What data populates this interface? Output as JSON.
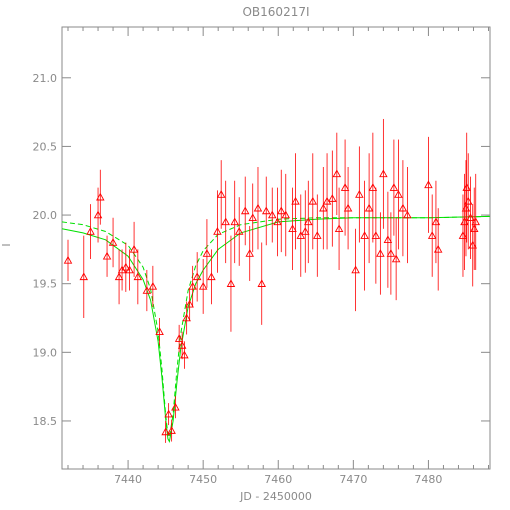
{
  "chart_data": {
    "type": "scatter",
    "title": "OB160217I",
    "xlabel": "JD - 2450000",
    "ylabel": "I",
    "xlim": [
      7431.2,
      7488.2
    ],
    "ylim": [
      21.37,
      18.15
    ],
    "y_inverted": true,
    "grid": false,
    "legend": "none",
    "xticks": [
      7440,
      7450,
      7460,
      7470,
      7480
    ],
    "xtick_labels": [
      "7440",
      "7450",
      "7460",
      "7470",
      "7480"
    ],
    "yticks": [
      18.5,
      19.0,
      19.5,
      20.0,
      20.5,
      21.0
    ],
    "ytick_labels": [
      "18.5",
      "19.0",
      "19.5",
      "20.0",
      "20.5",
      "21.0"
    ],
    "colors": {
      "points": "#ff0000",
      "model": "#00e000",
      "axis": "#8a8a8a"
    },
    "series": [
      {
        "kind": "points-with-errorbars",
        "marker": "open-triangle",
        "x": [
          7432.0,
          7434.1,
          7435.0,
          7436.0,
          7436.3,
          7437.2,
          7438.0,
          7438.8,
          7439.2,
          7439.7,
          7440.2,
          7440.8,
          7441.3,
          7442.5,
          7443.3,
          7444.2,
          7445.0,
          7445.4,
          7445.8,
          7446.3,
          7446.8,
          7447.2,
          7447.5,
          7447.8,
          7448.2,
          7448.6,
          7449.2,
          7450.0,
          7450.5,
          7451.1,
          7451.9,
          7452.4,
          7453.0,
          7453.7,
          7454.2,
          7454.8,
          7455.6,
          7456.2,
          7456.6,
          7457.3,
          7457.8,
          7458.4,
          7459.2,
          7459.9,
          7460.4,
          7461.0,
          7461.9,
          7462.3,
          7463.0,
          7463.6,
          7464.0,
          7464.6,
          7465.2,
          7466.0,
          7466.5,
          7467.2,
          7467.8,
          7468.1,
          7468.9,
          7469.3,
          7470.3,
          7470.8,
          7471.5,
          7472.1,
          7472.6,
          7473.0,
          7473.6,
          7474.0,
          7474.6,
          7475.0,
          7475.4,
          7475.7,
          7476.0,
          7476.6,
          7477.2,
          7480.0,
          7480.5,
          7481.0,
          7481.3,
          7484.6,
          7484.8,
          7485.0,
          7485.1,
          7485.3,
          7485.6,
          7485.9,
          7486.1,
          7486.3
        ],
        "y": [
          19.67,
          19.55,
          19.88,
          20.0,
          20.13,
          19.7,
          19.8,
          19.55,
          19.6,
          19.62,
          19.6,
          19.75,
          19.55,
          19.45,
          19.48,
          19.15,
          18.42,
          18.55,
          18.43,
          18.6,
          19.1,
          19.05,
          18.98,
          19.25,
          19.35,
          19.48,
          19.55,
          19.48,
          19.72,
          19.55,
          19.88,
          20.15,
          19.95,
          19.5,
          19.95,
          19.88,
          20.03,
          19.72,
          19.98,
          20.05,
          19.5,
          20.03,
          20.0,
          19.95,
          20.03,
          20.0,
          19.9,
          20.1,
          19.85,
          19.88,
          19.95,
          20.1,
          19.85,
          20.05,
          20.1,
          20.12,
          20.3,
          19.9,
          20.2,
          20.05,
          19.6,
          20.15,
          19.85,
          20.05,
          20.2,
          19.85,
          19.72,
          20.3,
          19.82,
          19.72,
          20.2,
          19.68,
          20.15,
          20.05,
          20.0,
          20.22,
          19.85,
          19.95,
          19.75,
          19.85,
          19.95,
          20.05,
          20.2,
          20.1,
          19.98,
          19.78,
          19.9,
          19.95
        ],
        "yerr": [
          0.15,
          0.3,
          0.2,
          0.2,
          0.2,
          0.15,
          0.18,
          0.2,
          0.15,
          0.18,
          0.15,
          0.2,
          0.2,
          0.15,
          0.15,
          0.1,
          0.08,
          0.08,
          0.08,
          0.08,
          0.1,
          0.1,
          0.1,
          0.12,
          0.12,
          0.15,
          0.18,
          0.2,
          0.25,
          0.2,
          0.3,
          0.25,
          0.3,
          0.35,
          0.3,
          0.25,
          0.25,
          0.2,
          0.25,
          0.3,
          0.3,
          0.25,
          0.2,
          0.25,
          0.3,
          0.3,
          0.3,
          0.35,
          0.3,
          0.3,
          0.3,
          0.35,
          0.3,
          0.3,
          0.35,
          0.35,
          0.3,
          0.3,
          0.35,
          0.3,
          0.3,
          0.35,
          0.4,
          0.4,
          0.4,
          0.35,
          0.3,
          0.4,
          0.35,
          0.3,
          0.35,
          0.3,
          0.4,
          0.35,
          0.35,
          0.35,
          0.3,
          0.3,
          0.3,
          0.3,
          0.35,
          0.35,
          0.4,
          0.35,
          0.3,
          0.3,
          0.3,
          0.35
        ]
      },
      {
        "kind": "model-line",
        "style": "solid",
        "x": [
          7431.2,
          7434,
          7437,
          7440,
          7442,
          7443,
          7444,
          7444.5,
          7445,
          7445.3,
          7445.5,
          7446,
          7446.5,
          7447,
          7448,
          7449,
          7450,
          7452,
          7455,
          7460,
          7465,
          7470,
          7475,
          7480,
          7488.2
        ],
        "y": [
          19.9,
          19.87,
          19.82,
          19.7,
          19.53,
          19.38,
          19.08,
          18.82,
          18.52,
          18.37,
          18.35,
          18.5,
          18.78,
          19.02,
          19.33,
          19.5,
          19.6,
          19.75,
          19.87,
          19.95,
          19.97,
          19.98,
          19.98,
          19.98,
          19.99
        ]
      },
      {
        "kind": "model-line",
        "style": "dashed",
        "x": [
          7431.2,
          7434,
          7437,
          7440,
          7442,
          7443,
          7444,
          7444.5,
          7445,
          7445.3,
          7445.5,
          7446,
          7446.5,
          7447,
          7448,
          7449,
          7450,
          7452,
          7455,
          7460,
          7465,
          7470,
          7475,
          7480,
          7488.2
        ],
        "y": [
          19.95,
          19.93,
          19.88,
          19.78,
          19.62,
          19.46,
          19.15,
          18.88,
          18.55,
          18.4,
          18.38,
          18.55,
          18.87,
          19.13,
          19.45,
          19.63,
          19.74,
          19.86,
          19.93,
          19.97,
          19.98,
          19.98,
          19.98,
          19.98,
          19.99
        ]
      }
    ]
  }
}
